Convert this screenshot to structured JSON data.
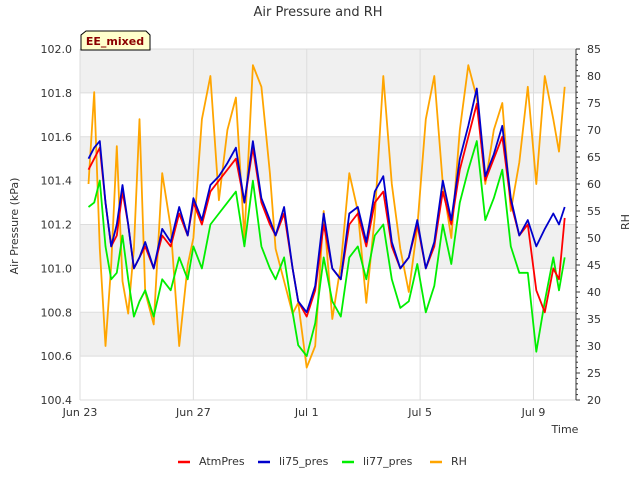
{
  "chart_data": {
    "type": "line",
    "title": "Air Pressure and RH",
    "badge": "EE_mixed",
    "xlabel": "Time",
    "ylabel": "Air Pressure (kPa)",
    "y2label": "RH",
    "xlim": [
      0,
      17.5
    ],
    "xticks": [
      {
        "x": 0,
        "label": "Jun 23"
      },
      {
        "x": 4,
        "label": "Jun 27"
      },
      {
        "x": 8,
        "label": "Jul 1"
      },
      {
        "x": 12,
        "label": "Jul 5"
      },
      {
        "x": 16,
        "label": "Jul 9"
      }
    ],
    "ylim": [
      100.4,
      102.0
    ],
    "yticks": [
      "100.4",
      "100.6",
      "100.8",
      "101.0",
      "101.2",
      "101.4",
      "101.6",
      "101.8",
      "102.0"
    ],
    "y2lim": [
      20,
      85
    ],
    "y2ticks": [
      "20",
      "25",
      "30",
      "35",
      "40",
      "45",
      "50",
      "55",
      "60",
      "65",
      "70",
      "75",
      "80",
      "85"
    ],
    "grid": true,
    "legend_position": "bottom",
    "colors": {
      "AtmPres": "#ff0000",
      "li75_pres": "#0000cc",
      "li77_pres": "#00ee00",
      "RH": "#ffa500"
    },
    "series": [
      {
        "name": "AtmPres",
        "axis": "left",
        "x": [
          0.3,
          0.5,
          0.7,
          0.9,
          1.1,
          1.3,
          1.5,
          1.7,
          1.9,
          2.1,
          2.3,
          2.6,
          2.9,
          3.2,
          3.5,
          3.8,
          4.0,
          4.3,
          4.6,
          4.9,
          5.2,
          5.5,
          5.8,
          6.1,
          6.4,
          6.7,
          6.9,
          7.2,
          7.5,
          7.7,
          8.0,
          8.3,
          8.6,
          8.9,
          9.2,
          9.5,
          9.8,
          10.1,
          10.4,
          10.7,
          11.0,
          11.3,
          11.6,
          11.9,
          12.2,
          12.5,
          12.8,
          13.1,
          13.4,
          13.7,
          14.0,
          14.3,
          14.6,
          14.9,
          15.2,
          15.5,
          15.8,
          16.1,
          16.4,
          16.7,
          16.9,
          17.1
        ],
        "y": [
          101.45,
          101.5,
          101.55,
          101.3,
          101.1,
          101.15,
          101.35,
          101.2,
          101.0,
          101.05,
          101.1,
          101.0,
          101.15,
          101.1,
          101.25,
          101.15,
          101.3,
          101.2,
          101.35,
          101.4,
          101.45,
          101.5,
          101.3,
          101.55,
          101.3,
          101.2,
          101.15,
          101.25,
          101.0,
          100.85,
          100.78,
          100.9,
          101.2,
          101.0,
          100.95,
          101.2,
          101.25,
          101.1,
          101.3,
          101.35,
          101.1,
          101.0,
          101.05,
          101.2,
          101.0,
          101.1,
          101.35,
          101.2,
          101.45,
          101.6,
          101.75,
          101.4,
          101.5,
          101.6,
          101.3,
          101.15,
          101.2,
          100.9,
          100.8,
          101.0,
          100.95,
          101.23
        ]
      },
      {
        "name": "li75_pres",
        "axis": "left",
        "x": [
          0.3,
          0.5,
          0.7,
          0.9,
          1.1,
          1.3,
          1.5,
          1.7,
          1.9,
          2.1,
          2.3,
          2.6,
          2.9,
          3.2,
          3.5,
          3.8,
          4.0,
          4.3,
          4.6,
          4.9,
          5.2,
          5.5,
          5.8,
          6.1,
          6.4,
          6.7,
          6.9,
          7.2,
          7.5,
          7.7,
          8.0,
          8.3,
          8.6,
          8.9,
          9.2,
          9.5,
          9.8,
          10.1,
          10.4,
          10.7,
          11.0,
          11.3,
          11.6,
          11.9,
          12.2,
          12.5,
          12.8,
          13.1,
          13.4,
          13.7,
          14.0,
          14.3,
          14.6,
          14.9,
          15.2,
          15.5,
          15.8,
          16.1,
          16.4,
          16.7,
          16.9,
          17.1
        ],
        "y": [
          101.5,
          101.55,
          101.58,
          101.3,
          101.1,
          101.2,
          101.38,
          101.2,
          101.0,
          101.05,
          101.12,
          101.0,
          101.18,
          101.12,
          101.28,
          101.15,
          101.32,
          101.22,
          101.38,
          101.42,
          101.48,
          101.55,
          101.3,
          101.58,
          101.32,
          101.22,
          101.15,
          101.28,
          101.0,
          100.85,
          100.8,
          100.92,
          101.25,
          101.0,
          100.95,
          101.25,
          101.28,
          101.12,
          101.35,
          101.42,
          101.12,
          101.0,
          101.05,
          101.22,
          101.0,
          101.12,
          101.4,
          101.22,
          101.5,
          101.65,
          101.82,
          101.42,
          101.52,
          101.65,
          101.32,
          101.15,
          101.22,
          101.1,
          101.18,
          101.25,
          101.2,
          101.28
        ]
      },
      {
        "name": "li77_pres",
        "axis": "left",
        "x": [
          0.3,
          0.5,
          0.7,
          0.9,
          1.1,
          1.3,
          1.5,
          1.7,
          1.9,
          2.1,
          2.3,
          2.6,
          2.9,
          3.2,
          3.5,
          3.8,
          4.0,
          4.3,
          4.6,
          4.9,
          5.2,
          5.5,
          5.8,
          6.1,
          6.4,
          6.7,
          6.9,
          7.2,
          7.5,
          7.7,
          8.0,
          8.3,
          8.6,
          8.9,
          9.2,
          9.5,
          9.8,
          10.1,
          10.4,
          10.7,
          11.0,
          11.3,
          11.6,
          11.9,
          12.2,
          12.5,
          12.8,
          13.1,
          13.4,
          13.7,
          14.0,
          14.3,
          14.6,
          14.9,
          15.2,
          15.5,
          15.8,
          16.1,
          16.4,
          16.7,
          16.9,
          17.1
        ],
        "y": [
          101.28,
          101.3,
          101.4,
          101.1,
          100.95,
          100.98,
          101.15,
          100.95,
          100.78,
          100.85,
          100.9,
          100.78,
          100.95,
          100.9,
          101.05,
          100.95,
          101.1,
          101.0,
          101.2,
          101.25,
          101.3,
          101.35,
          101.1,
          101.4,
          101.1,
          101.0,
          100.95,
          101.05,
          100.8,
          100.65,
          100.6,
          100.75,
          101.05,
          100.85,
          100.78,
          101.05,
          101.1,
          100.95,
          101.15,
          101.2,
          100.95,
          100.82,
          100.85,
          101.02,
          100.8,
          100.92,
          101.2,
          101.02,
          101.3,
          101.45,
          101.58,
          101.22,
          101.32,
          101.45,
          101.1,
          100.98,
          100.98,
          100.62,
          100.85,
          101.05,
          100.9,
          101.05
        ]
      },
      {
        "name": "RH",
        "axis": "right",
        "x": [
          0.3,
          0.5,
          0.7,
          0.9,
          1.1,
          1.3,
          1.5,
          1.7,
          1.9,
          2.1,
          2.3,
          2.6,
          2.9,
          3.2,
          3.5,
          3.8,
          4.0,
          4.3,
          4.6,
          4.9,
          5.2,
          5.5,
          5.8,
          6.1,
          6.4,
          6.7,
          6.9,
          7.2,
          7.5,
          7.7,
          8.0,
          8.3,
          8.6,
          8.9,
          9.2,
          9.5,
          9.8,
          10.1,
          10.4,
          10.7,
          11.0,
          11.3,
          11.6,
          11.9,
          12.2,
          12.5,
          12.8,
          13.1,
          13.4,
          13.7,
          14.0,
          14.3,
          14.6,
          14.9,
          15.2,
          15.5,
          15.8,
          16.1,
          16.4,
          16.7,
          16.9,
          17.1
        ],
        "y": [
          60,
          77,
          48,
          30,
          45,
          67,
          42,
          36,
          48,
          72,
          40,
          34,
          62,
          52,
          30,
          45,
          50,
          72,
          80,
          57,
          70,
          76,
          50,
          82,
          78,
          62,
          48,
          42,
          36,
          38,
          26,
          30,
          55,
          35,
          45,
          62,
          55,
          38,
          54,
          80,
          60,
          48,
          40,
          52,
          72,
          80,
          60,
          50,
          70,
          82,
          76,
          60,
          70,
          75,
          55,
          64,
          78,
          60,
          80,
          72,
          66,
          78
        ]
      }
    ]
  }
}
